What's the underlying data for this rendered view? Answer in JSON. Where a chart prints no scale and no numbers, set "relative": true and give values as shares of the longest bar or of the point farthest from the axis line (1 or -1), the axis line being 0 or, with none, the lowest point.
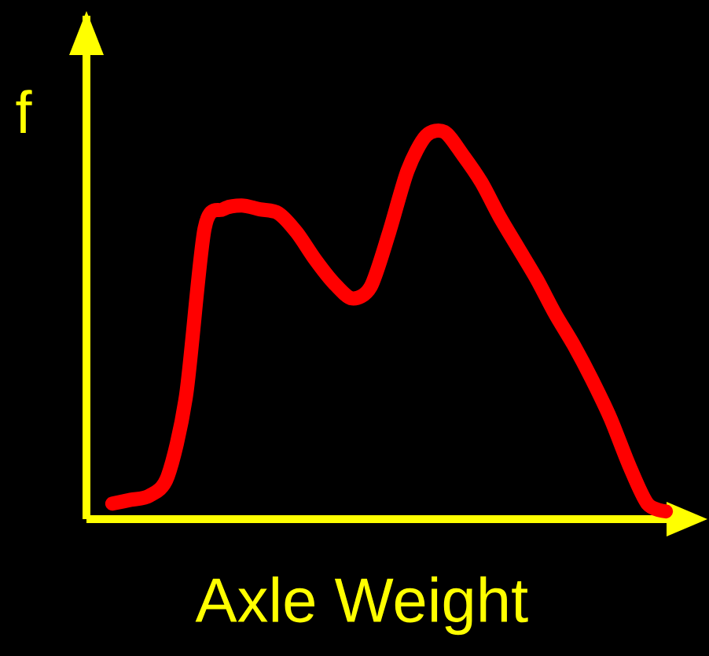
{
  "chart_data": {
    "type": "line",
    "relative": true,
    "xlabel": "Axle Weight",
    "ylabel": "f",
    "line_style": "solid",
    "categories": [
      null,
      null,
      null,
      null,
      null,
      null,
      null,
      null,
      null,
      null,
      null,
      null,
      null,
      null,
      null,
      null,
      null,
      null,
      null,
      null,
      null,
      null,
      null,
      null,
      null,
      null,
      null,
      null,
      null,
      null,
      null
    ],
    "series": [
      {
        "color": "#ff0000",
        "values": [
          0.04,
          0.05,
          0.06,
          0.11,
          0.32,
          0.75,
          0.8,
          0.81,
          0.8,
          0.79,
          0.74,
          0.67,
          0.61,
          0.57,
          0.6,
          0.74,
          0.9,
          0.99,
          1,
          0.94,
          0.87,
          0.78,
          0.7,
          0.62,
          0.53,
          0.45,
          0.36,
          0.26,
          0.14,
          0.04,
          0.02
        ]
      }
    ]
  }
}
